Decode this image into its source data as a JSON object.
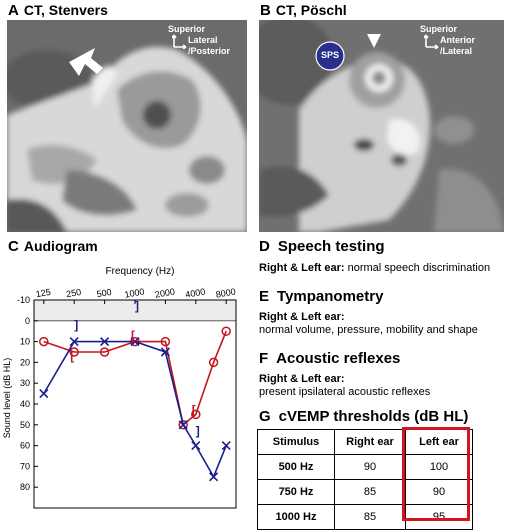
{
  "panels": {
    "A": {
      "letter": "A",
      "title": "CT, Stenvers",
      "orient_top": "Superior",
      "orient_side": "Lateral",
      "orient_side2": "/Posterior"
    },
    "B": {
      "letter": "B",
      "title": "CT, Pöschl",
      "orient_top": "Superior",
      "orient_side": "Anterior",
      "orient_side2": "/Lateral",
      "sps_label": "SPS"
    },
    "C": {
      "letter": "C",
      "title": "Audiogram"
    },
    "D": {
      "letter": "D",
      "title": "Speech testing",
      "line1": "Right & Left ear: normal speech discrimination"
    },
    "E": {
      "letter": "E",
      "title": "Tympanometry",
      "line1": "Right & Left ear:",
      "line2": "normal volume, pressure, mobility and shape"
    },
    "F": {
      "letter": "F",
      "title": "Acoustic reflexes",
      "line1": "Right & Left ear:",
      "line2": "present ipsilateral acoustic reflexes"
    },
    "G": {
      "letter": "G",
      "title": "cVEMP thresholds (dB HL)"
    }
  },
  "cvemp_table": {
    "headers": [
      "Stimulus",
      "Right ear",
      "Left ear"
    ],
    "rows": [
      [
        "500 Hz",
        "90",
        "100"
      ],
      [
        "750 Hz",
        "85",
        "90"
      ],
      [
        "1000 Hz",
        "85",
        "95"
      ]
    ]
  },
  "chart_data": {
    "type": "line",
    "xlabel": "Frequency (Hz)",
    "ylabel": "Sound level (dB HL)",
    "x_scale": "log",
    "x": [
      125,
      250,
      500,
      1000,
      2000,
      3000,
      4000,
      6000,
      8000
    ],
    "x_ticks": [
      "125",
      "250",
      "500",
      "1000",
      "2000",
      "4000",
      "8000"
    ],
    "ylim": [
      -10,
      90
    ],
    "y_ticks": [
      "-10",
      "0",
      "10",
      "20",
      "30",
      "40",
      "50",
      "60",
      "70",
      "80"
    ],
    "y_inverted": true,
    "shaded_band": [
      -10,
      0
    ],
    "series": [
      {
        "values": [
          10,
          15,
          15,
          10,
          10,
          50,
          45,
          20,
          5
        ],
        "color": "#c4161c",
        "marker": "circle"
      },
      {
        "values": [
          35,
          10,
          10,
          10,
          15,
          50,
          60,
          75,
          60
        ],
        "color": "#1a1f8c",
        "marker": "x"
      }
    ],
    "bone_conduction": [
      {
        "x": 250,
        "y": 2,
        "glyph": "]",
        "color": "#1a1f8c"
      },
      {
        "x": 1000,
        "y": -7,
        "glyph": "]",
        "color": "#1a1f8c"
      },
      {
        "x": 4000,
        "y": 53,
        "glyph": "]",
        "color": "#1a1f8c"
      },
      {
        "x": 250,
        "y": 17,
        "glyph": "[",
        "color": "#c4161c"
      },
      {
        "x": 1000,
        "y": 7,
        "glyph": "[",
        "color": "#c4161c"
      },
      {
        "x": 4000,
        "y": 43,
        "glyph": "[",
        "color": "#c4161c"
      }
    ],
    "colors": {
      "band": "#ececec",
      "axis": "#000000"
    }
  }
}
